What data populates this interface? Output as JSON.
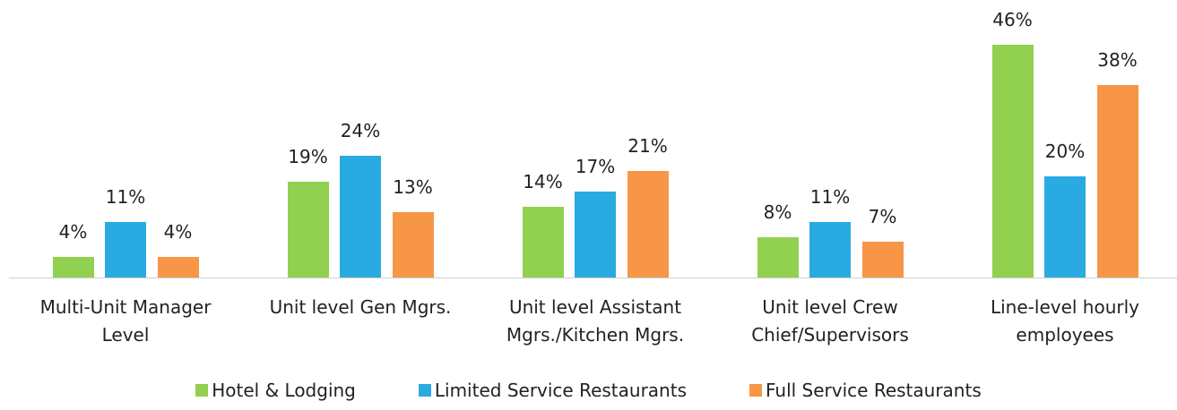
{
  "chart_data": {
    "type": "bar",
    "categories": [
      "Multi-Unit Manager\nLevel",
      "Unit level Gen Mgrs.",
      "Unit level Assistant\nMgrs./Kitchen Mgrs.",
      "Unit level Crew\nChief/Supervisors",
      "Line-level hourly\nemployees"
    ],
    "series": [
      {
        "name": "Hotel & Lodging",
        "color": "#92d050",
        "values": [
          4,
          19,
          14,
          8,
          46
        ],
        "value_labels": [
          "4%",
          "19%",
          "14%",
          "8%",
          "46%"
        ]
      },
      {
        "name": "Limited Service Restaurants",
        "color": "#29abe2",
        "values": [
          11,
          24,
          17,
          11,
          20
        ],
        "value_labels": [
          "11%",
          "24%",
          "17%",
          "11%",
          "20%"
        ]
      },
      {
        "name": "Full Service Restaurants",
        "color": "#f79646",
        "values": [
          4,
          13,
          21,
          7,
          38
        ],
        "value_labels": [
          "4%",
          "13%",
          "21%",
          "7%",
          "38%"
        ]
      }
    ],
    "ylim": [
      0,
      50
    ],
    "legend": "bottom"
  }
}
